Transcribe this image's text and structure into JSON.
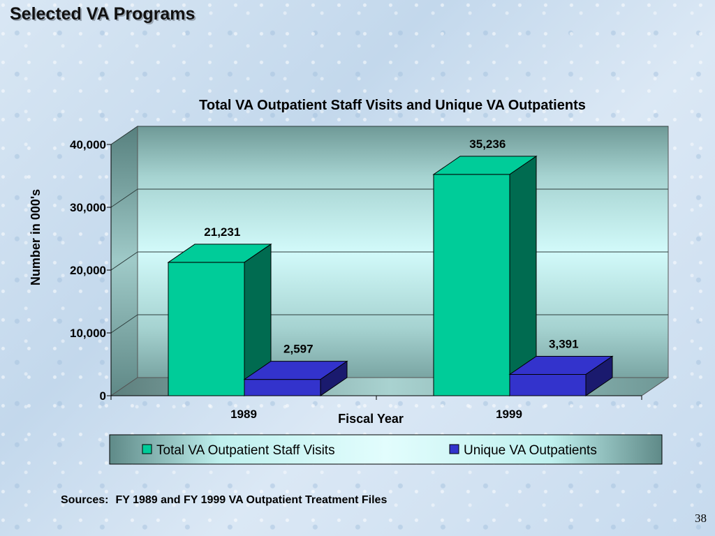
{
  "slide": {
    "title": "Selected VA Programs",
    "sources_label": "Sources:",
    "sources_text": "FY 1989 and FY 1999 VA Outpatient Treatment Files",
    "page_number": "38"
  },
  "colors": {
    "series_1": "#00cc99",
    "series_1_side": "#006b50",
    "series_2": "#3333cc",
    "series_2_side": "#1a1a6e",
    "plot_back": "#c8f4f4"
  },
  "chart_data": {
    "type": "bar",
    "three_d": true,
    "title": "Total VA Outpatient Staff Visits and Unique VA Outpatients",
    "xlabel": "Fiscal Year",
    "ylabel": "Number in 000's",
    "categories": [
      "1989",
      "1999"
    ],
    "series": [
      {
        "name": "Total VA Outpatient Staff Visits",
        "values": [
          21231,
          35236
        ],
        "labels": [
          "21,231",
          "35,236"
        ]
      },
      {
        "name": "Unique VA Outpatients",
        "values": [
          2597,
          3391
        ],
        "labels": [
          "2,597",
          "3,391"
        ]
      }
    ],
    "ylim": [
      0,
      40000
    ],
    "yticks": [
      0,
      10000,
      20000,
      30000,
      40000
    ],
    "ytick_labels": [
      "0",
      "10,000",
      "20,000",
      "30,000",
      "40,000"
    ],
    "grid": true,
    "legend_position": "bottom"
  }
}
